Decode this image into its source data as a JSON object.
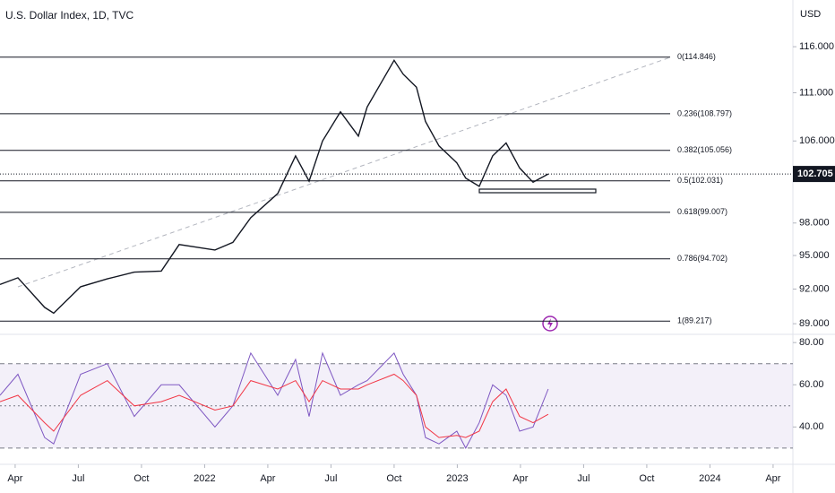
{
  "chart_data": [
    {
      "type": "line",
      "title": "U.S. Dollar Index, 1D, TVC",
      "y_axis_label": "USD",
      "log_scale": true,
      "x": [
        2.28,
        3.13,
        4.4,
        4.83,
        6.11,
        7.38,
        8.66,
        9.94,
        10.79,
        12.49,
        13.34,
        14.19,
        15.47,
        16.32,
        16.96,
        17.6,
        18.45,
        19.3,
        19.72,
        21.0,
        21.43,
        22.06,
        22.49,
        23.13,
        23.98,
        24.4,
        25.04,
        25.68,
        26.32,
        26.96,
        27.6,
        28.32
      ],
      "series": [
        {
          "color": "#131722",
          "values": [
            92.4,
            93.0,
            90.4,
            89.9,
            92.2,
            92.9,
            93.5,
            93.6,
            96.0,
            95.5,
            96.2,
            98.5,
            100.8,
            104.5,
            102.0,
            106.0,
            109.0,
            106.5,
            109.5,
            114.5,
            113.0,
            111.6,
            108.0,
            105.5,
            103.8,
            102.3,
            101.5,
            104.5,
            105.8,
            103.3,
            101.9,
            102.705
          ]
        }
      ],
      "xlim": [
        2.28,
        39.94
      ],
      "ylim": [
        88.1,
        121.3
      ],
      "xticks": [
        {
          "value": 3,
          "label": "Apr"
        },
        {
          "value": 6,
          "label": "Jul"
        },
        {
          "value": 9,
          "label": "Oct"
        },
        {
          "value": 12,
          "label": "2022"
        },
        {
          "value": 15,
          "label": "Apr"
        },
        {
          "value": 18,
          "label": "Jul"
        },
        {
          "value": 21,
          "label": "Oct"
        },
        {
          "value": 24,
          "label": "2023"
        },
        {
          "value": 27,
          "label": "Apr"
        },
        {
          "value": 30,
          "label": "Jul"
        },
        {
          "value": 33,
          "label": "Oct"
        },
        {
          "value": 36,
          "label": "2024"
        },
        {
          "value": 39,
          "label": "Apr"
        }
      ],
      "yticks": [
        {
          "value": 116,
          "label": "116.000"
        },
        {
          "value": 111,
          "label": "111.000"
        },
        {
          "value": 106,
          "label": "106.000"
        },
        {
          "value": 98,
          "label": "98.000"
        },
        {
          "value": 95,
          "label": "95.000"
        },
        {
          "value": 92,
          "label": "92.000"
        },
        {
          "value": 89,
          "label": "89.000"
        }
      ],
      "fib_levels": [
        {
          "value": 114.846,
          "label": "0(114.846)"
        },
        {
          "value": 108.797,
          "label": "0.236(108.797)"
        },
        {
          "value": 105.056,
          "label": "0.382(105.056)"
        },
        {
          "value": 102.031,
          "label": "0.5(102.031)"
        },
        {
          "value": 99.007,
          "label": "0.618(99.007)"
        },
        {
          "value": 94.702,
          "label": "0.786(94.702)"
        },
        {
          "value": 89.217,
          "label": "1(89.217)"
        }
      ],
      "last_price": 102.705
    },
    {
      "type": "line",
      "x": [
        2.28,
        3.13,
        4.4,
        4.83,
        6.11,
        7.38,
        8.66,
        9.94,
        10.79,
        12.49,
        13.34,
        14.19,
        15.47,
        16.32,
        16.96,
        17.6,
        18.45,
        19.3,
        19.72,
        21.0,
        21.43,
        22.06,
        22.49,
        23.13,
        23.98,
        24.4,
        25.04,
        25.68,
        26.32,
        26.96,
        27.6,
        28.32
      ],
      "series": [
        {
          "color": "#7e57c2",
          "values": [
            55,
            65,
            35,
            32,
            65,
            70,
            45,
            60,
            60,
            40,
            50,
            75,
            55,
            72,
            45,
            75,
            55,
            60,
            62,
            75,
            65,
            55,
            35,
            32,
            38,
            30,
            42,
            60,
            55,
            38,
            40,
            58
          ]
        },
        {
          "color": "#f23645",
          "values": [
            52,
            55,
            42,
            38,
            55,
            62,
            50,
            52,
            55,
            48,
            50,
            62,
            58,
            62,
            52,
            62,
            58,
            58,
            60,
            65,
            62,
            55,
            40,
            35,
            36,
            35,
            38,
            52,
            58,
            45,
            42,
            46
          ]
        }
      ],
      "xlim": [
        2.28,
        39.94
      ],
      "ylim": [
        22.3,
        83.9
      ],
      "yticks": [
        {
          "value": 80,
          "label": "80.00"
        },
        {
          "value": 60,
          "label": "60.00"
        },
        {
          "value": 40,
          "label": "40.00"
        }
      ],
      "levels": [
        70,
        50,
        30
      ]
    }
  ]
}
